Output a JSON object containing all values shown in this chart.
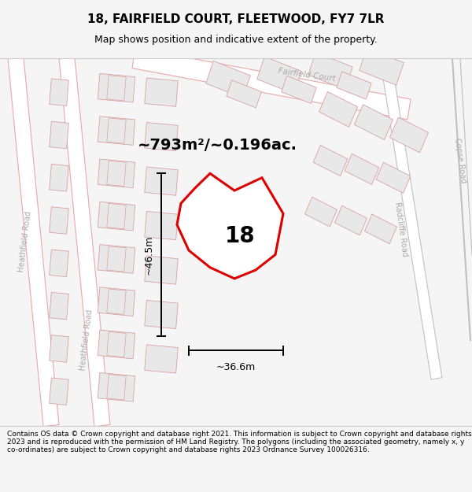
{
  "title": "18, FAIRFIELD COURT, FLEETWOOD, FY7 7LR",
  "subtitle": "Map shows position and indicative extent of the property.",
  "area_text": "~793m²/~0.196ac.",
  "label_number": "18",
  "dim_horizontal": "~36.6m",
  "dim_vertical": "~46.5m",
  "footer": "Contains OS data © Crown copyright and database right 2021. This information is subject to Crown copyright and database rights 2023 and is reproduced with the permission of HM Land Registry. The polygons (including the associated geometry, namely x, y co-ordinates) are subject to Crown copyright and database rights 2023 Ordnance Survey 100026316.",
  "bg_color": "#f5f5f5",
  "map_bg": "#ffffff",
  "road_stroke": "#e8a8a8",
  "road_fill": "#ffffff",
  "bld_face": "#e8e8e8",
  "bld_edge": "#d8a0a0",
  "bld_edge_gray": "#c0c0c0",
  "plot_color": "#dd0000",
  "title_fontsize": 11,
  "subtitle_fontsize": 9,
  "area_fontsize": 14,
  "number_fontsize": 20,
  "dim_fontsize": 9,
  "footer_fontsize": 6.5,
  "road_label_fontsize": 7,
  "road_label_color": "#aaaaaa"
}
